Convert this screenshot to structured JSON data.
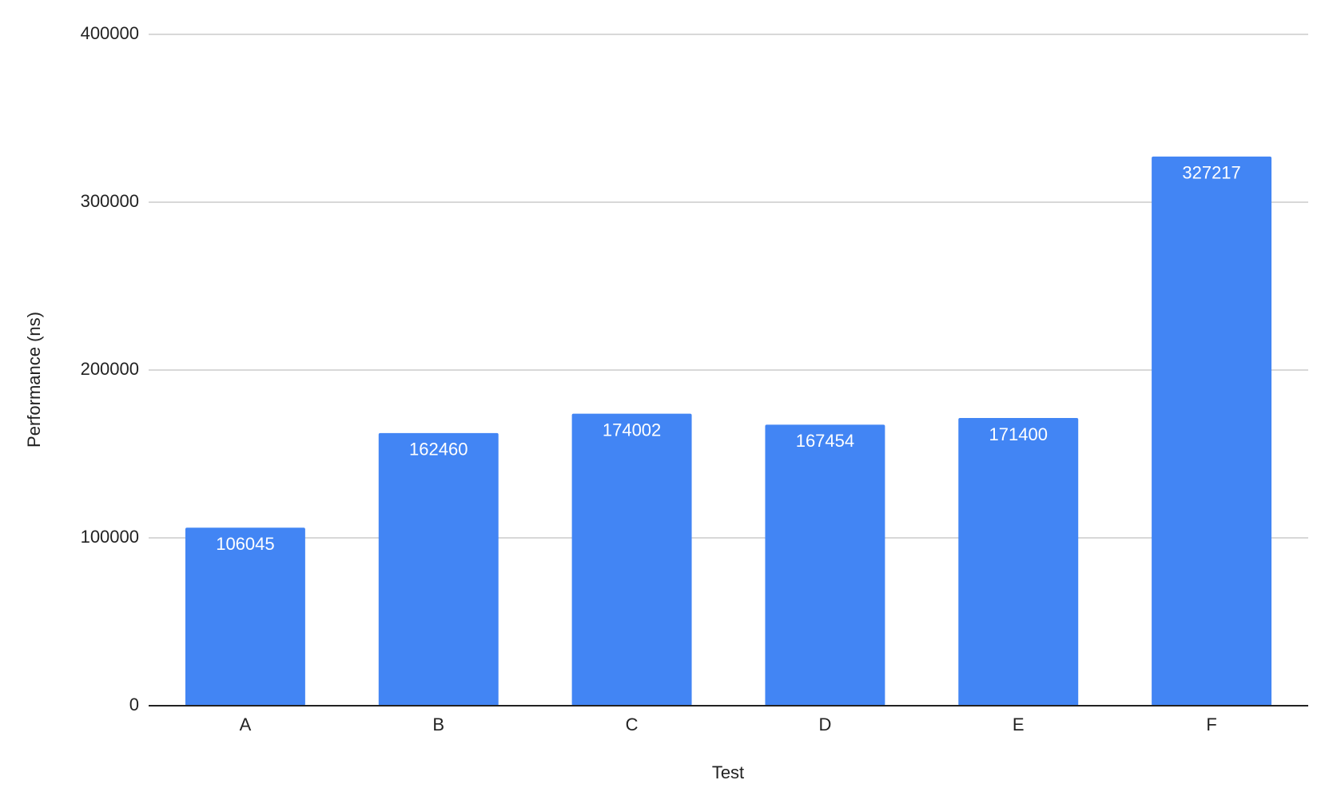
{
  "chart_data": {
    "type": "bar",
    "x_label": "Test",
    "y_label": "Performance (ns)",
    "categories": [
      "A",
      "B",
      "C",
      "D",
      "E",
      "F"
    ],
    "values": [
      106045,
      162460,
      174002,
      167454,
      171400,
      327217
    ],
    "color": "#4285f4",
    "ylim": [
      0,
      400000
    ],
    "yticks": [
      0,
      100000,
      200000,
      300000,
      400000
    ],
    "grid": true
  }
}
